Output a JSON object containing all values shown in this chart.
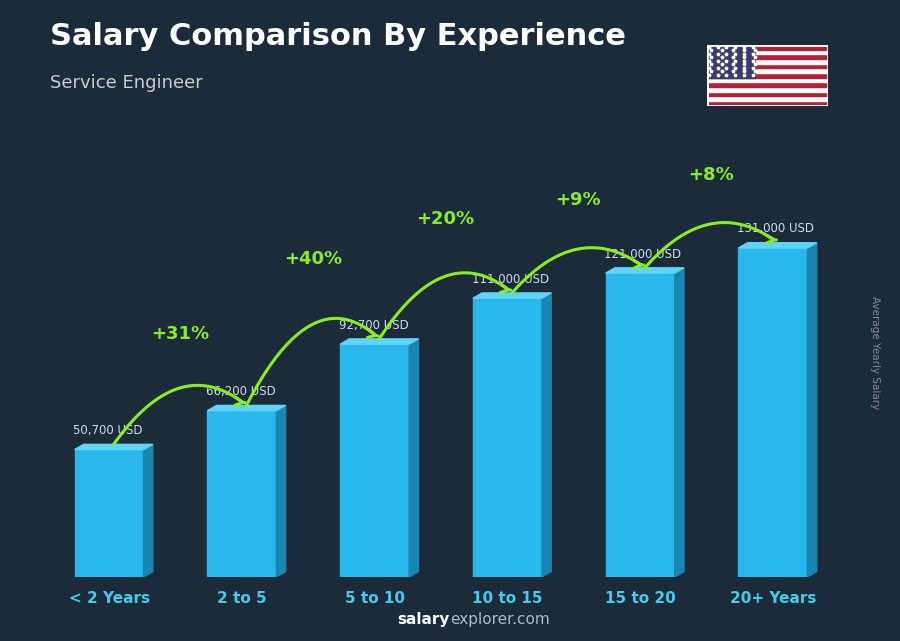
{
  "categories": [
    "< 2 Years",
    "2 to 5",
    "5 to 10",
    "10 to 15",
    "15 to 20",
    "20+ Years"
  ],
  "values": [
    50700,
    66200,
    92700,
    111000,
    121000,
    131000
  ],
  "salaries": [
    "50,700 USD",
    "66,200 USD",
    "92,700 USD",
    "111,000 USD",
    "121,000 USD",
    "131,000 USD"
  ],
  "pct_labels": [
    null,
    "+31%",
    "+40%",
    "+20%",
    "+9%",
    "+8%"
  ],
  "title": "Salary Comparison By Experience",
  "subtitle": "Service Engineer",
  "ylabel": "Average Yearly Salary",
  "footer_bold": "salary",
  "footer_normal": "explorer.com",
  "bar_front": "#29b8ec",
  "bar_side": "#1a85b0",
  "bar_top": "#60d4f5",
  "bg_color": "#1c2b3a",
  "pct_color": "#88ee22",
  "salary_color": "#c8dde8",
  "xlabel_color": "#44ccee",
  "title_color": "#ffffff",
  "subtitle_color": "#cccccc",
  "arc_color": "#88ee22",
  "ylabel_color": "#888899",
  "footer_bold_color": "#ffffff",
  "footer_normal_color": "#aabbcc"
}
